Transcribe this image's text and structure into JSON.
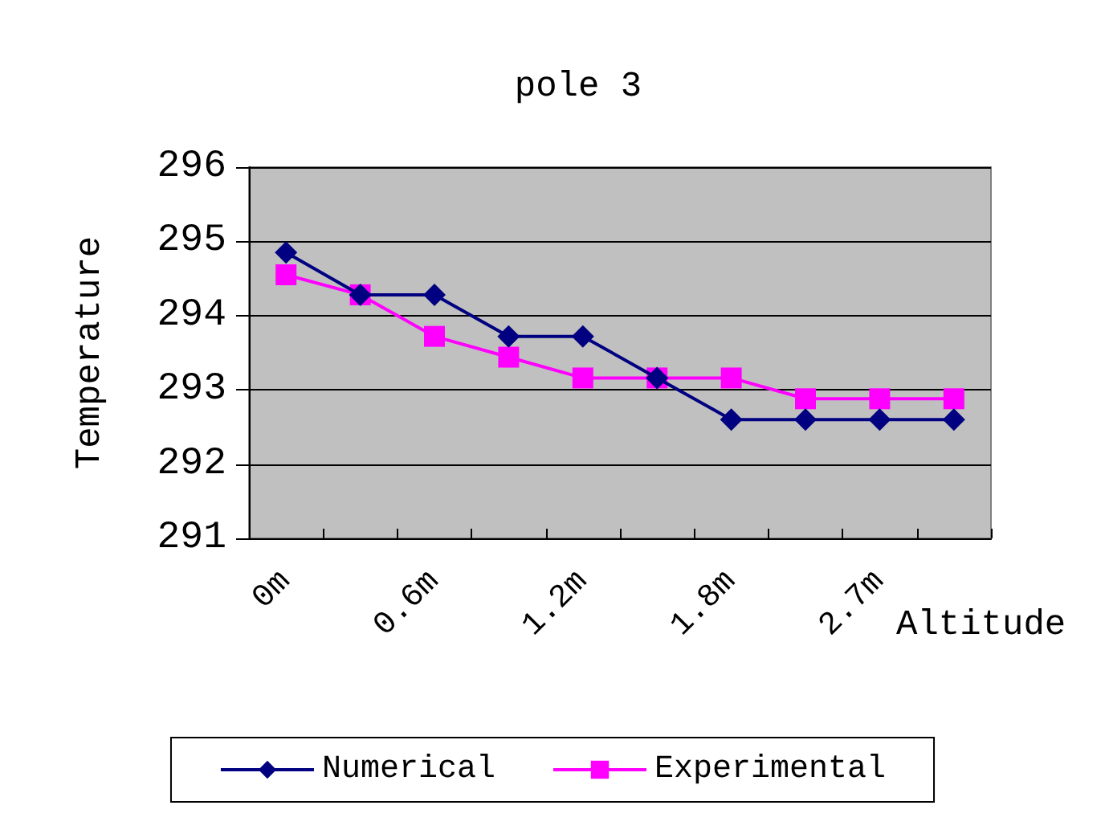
{
  "chart_data": {
    "type": "line",
    "title": "pole 3",
    "xlabel": "Altitude",
    "ylabel": "Temperature",
    "categories": [
      "0m",
      null,
      "0.6m",
      null,
      "1.2m",
      null,
      "1.8m",
      null,
      "2.7m",
      null
    ],
    "series": [
      {
        "name": "Numerical",
        "color": "#000080",
        "marker": "diamond",
        "values": [
          294.85,
          294.28,
          294.28,
          293.72,
          293.72,
          293.16,
          292.6,
          292.6,
          292.6,
          292.6
        ]
      },
      {
        "name": "Experimental",
        "color": "#ff00ff",
        "marker": "square",
        "values": [
          294.55,
          294.28,
          293.72,
          293.44,
          293.16,
          293.16,
          293.16,
          292.88,
          292.88,
          292.88
        ]
      }
    ],
    "ylim": [
      291,
      296
    ],
    "yticks": [
      291,
      292,
      293,
      294,
      295,
      296
    ],
    "grid": "y",
    "legend": "bottom",
    "line_style": "solid"
  }
}
